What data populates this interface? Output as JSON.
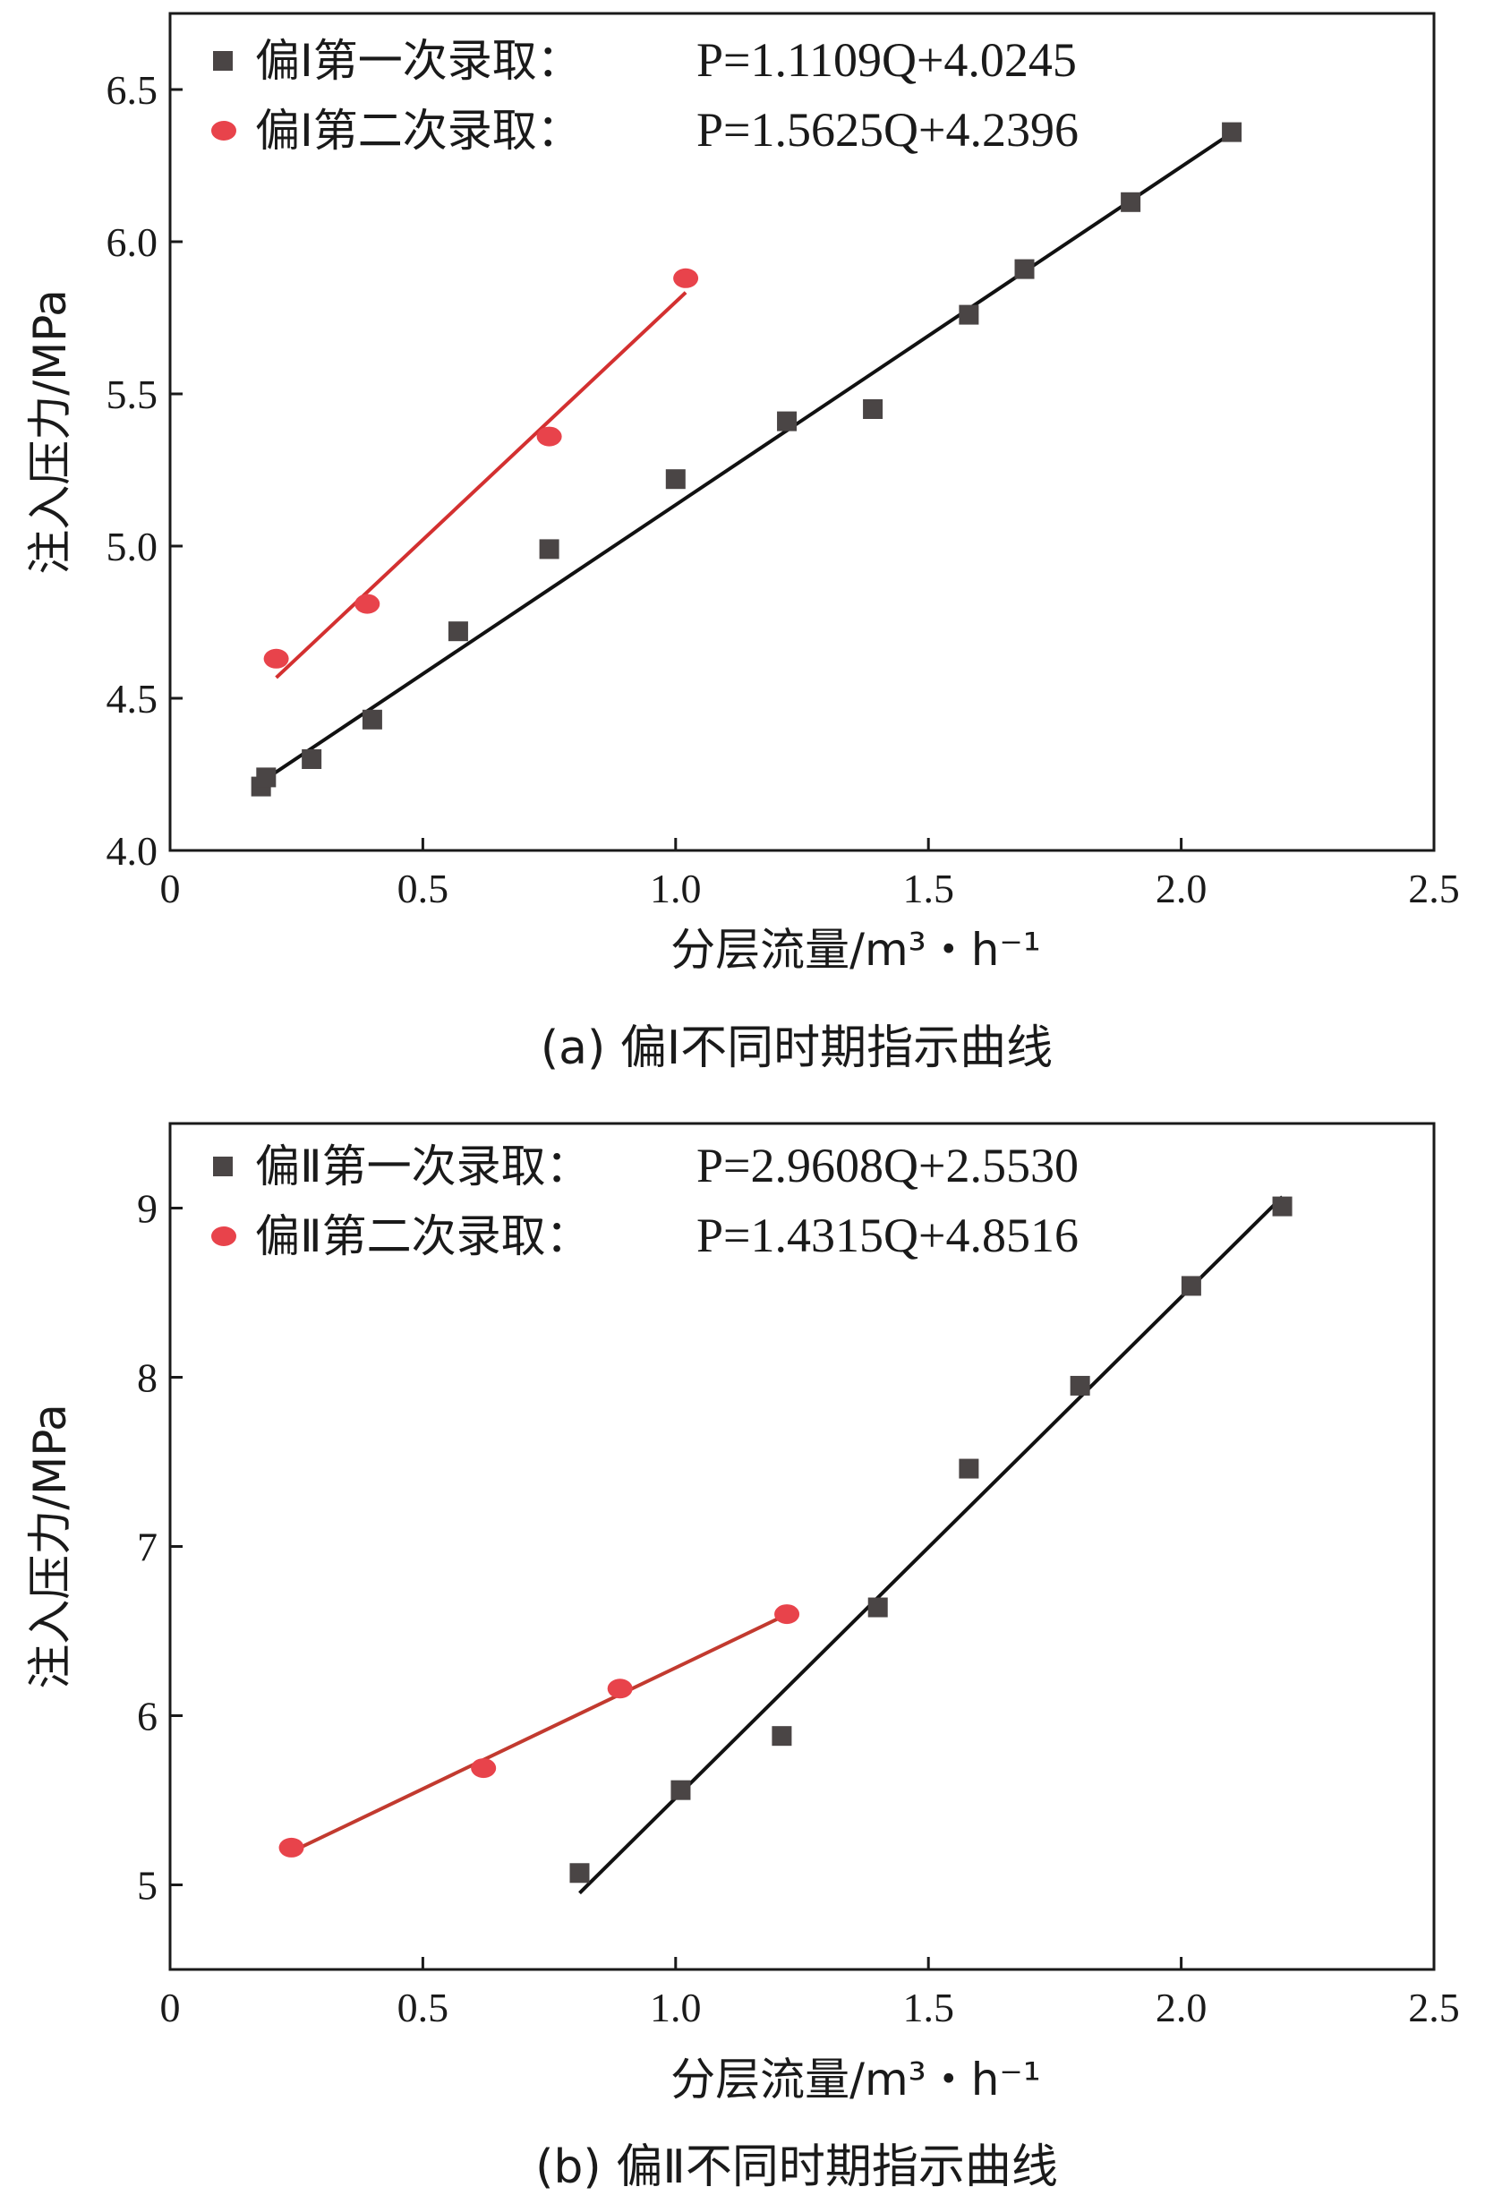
{
  "chart_data": [
    {
      "type": "scatter",
      "caption": "(a) 偏Ⅰ不同时期指示曲线",
      "xlabel": "分层流量/m³・h⁻¹",
      "ylabel": "注入压力/MPa",
      "xlim": [
        0,
        2.5
      ],
      "ylim": [
        4.0,
        6.75
      ],
      "xticks": [
        0,
        0.5,
        1.0,
        1.5,
        2.0,
        2.5
      ],
      "xtick_labels": [
        "0",
        "0.5",
        "1.0",
        "1.5",
        "2.0",
        "2.5"
      ],
      "yticks": [
        4.0,
        4.5,
        5.0,
        5.5,
        6.0,
        6.5
      ],
      "ytick_labels": [
        "4.0",
        "4.5",
        "5.0",
        "5.5",
        "6.0",
        "6.5"
      ],
      "legend_position": "top-left",
      "series": [
        {
          "name": "偏Ⅰ第一次录取：",
          "equation": "P=1.1109Q+4.0245",
          "marker": "square",
          "color": "#4a4545",
          "line_color": "#111111",
          "fit": {
            "slope": 1.1109,
            "intercept": 4.0245,
            "x_range": [
              0.18,
              2.1
            ]
          },
          "x": [
            0.18,
            0.19,
            0.28,
            0.4,
            0.57,
            0.75,
            1.0,
            1.22,
            1.39,
            1.58,
            1.69,
            1.9,
            2.1
          ],
          "y": [
            4.21,
            4.24,
            4.3,
            4.43,
            4.72,
            4.99,
            5.22,
            5.41,
            5.45,
            5.76,
            5.91,
            6.13,
            6.36
          ]
        },
        {
          "name": "偏Ⅰ第二次录取：",
          "equation": "P=1.5625Q+4.2396",
          "marker": "circle",
          "color": "#e8434b",
          "line_color": "#d33030",
          "fit": {
            "slope": 1.5625,
            "intercept": 4.2396,
            "x_range": [
              0.21,
              1.02
            ]
          },
          "x": [
            0.21,
            0.39,
            0.75,
            1.02
          ],
          "y": [
            4.63,
            4.81,
            5.36,
            5.88
          ]
        }
      ]
    },
    {
      "type": "scatter",
      "caption": "(b) 偏Ⅱ不同时期指示曲线",
      "xlabel": "分层流量/m³・h⁻¹",
      "ylabel": "注入压力/MPa",
      "xlim": [
        0,
        2.5
      ],
      "ylim": [
        4.5,
        9.5
      ],
      "xticks": [
        0,
        0.5,
        1.0,
        1.5,
        2.0,
        2.5
      ],
      "xtick_labels": [
        "0",
        "0.5",
        "1.0",
        "1.5",
        "2.0",
        "2.5"
      ],
      "yticks": [
        5,
        6,
        7,
        8,
        9
      ],
      "ytick_labels": [
        "5",
        "6",
        "7",
        "8",
        "9"
      ],
      "legend_position": "top-left",
      "series": [
        {
          "name": "偏Ⅱ第一次录取：",
          "equation": "P=2.9608Q+2.5530",
          "marker": "square",
          "color": "#4a4545",
          "line_color": "#111111",
          "fit": {
            "slope": 2.9608,
            "intercept": 2.553,
            "x_range": [
              0.81,
              2.2
            ]
          },
          "x": [
            0.81,
            1.01,
            1.21,
            1.4,
            1.58,
            1.8,
            2.02,
            2.2
          ],
          "y": [
            5.07,
            5.56,
            5.88,
            6.64,
            7.46,
            7.95,
            8.54,
            9.01
          ]
        },
        {
          "name": "偏Ⅱ第二次录取：",
          "equation": "P=1.4315Q+4.8516",
          "marker": "circle",
          "color": "#e8434b",
          "line_color": "#c23a2f",
          "fit": {
            "slope": 1.4315,
            "intercept": 4.8516,
            "x_range": [
              0.24,
              1.22
            ]
          },
          "x": [
            0.24,
            0.62,
            0.89,
            1.22
          ],
          "y": [
            5.22,
            5.69,
            6.16,
            6.6
          ]
        }
      ]
    }
  ]
}
